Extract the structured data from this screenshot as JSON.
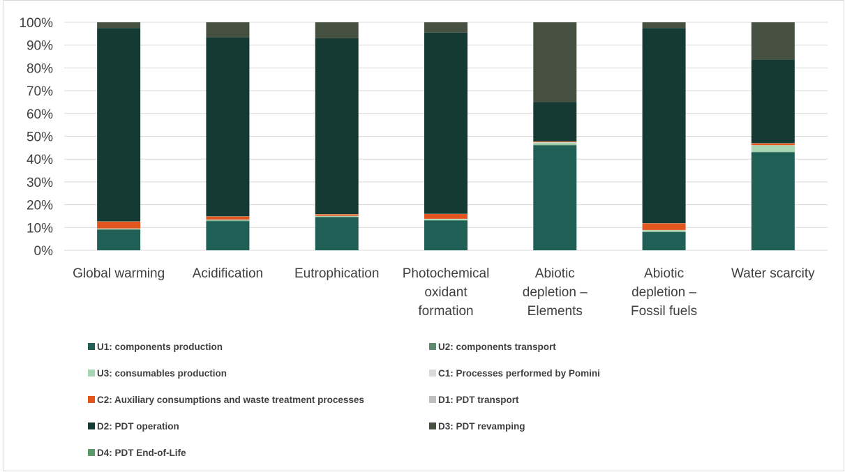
{
  "chart_data": {
    "type": "bar",
    "stacked": true,
    "percent": true,
    "categories": [
      [
        "Global warming"
      ],
      [
        "Acidification"
      ],
      [
        "Eutrophication"
      ],
      [
        "Photochemical",
        "oxidant",
        "formation"
      ],
      [
        "Abiotic",
        "depletion –",
        "Elements"
      ],
      [
        "Abiotic",
        "depletion –",
        "Fossil fuels"
      ],
      [
        "Water scarcity"
      ]
    ],
    "yticks": [
      "0%",
      "10%",
      "20%",
      "30%",
      "40%",
      "50%",
      "60%",
      "70%",
      "80%",
      "90%",
      "100%"
    ],
    "ylim": [
      0,
      100
    ],
    "grid": true,
    "legend_position": "bottom",
    "series": [
      {
        "name": "U1: components production",
        "color": "#1f5f55",
        "values": [
          9.0,
          12.8,
          14.5,
          13.0,
          46.0,
          8.0,
          43.0
        ]
      },
      {
        "name": "U2: components transport",
        "color": "#5f8a70",
        "values": [
          0.2,
          0.2,
          0.2,
          0.2,
          0.3,
          0.2,
          0.2
        ]
      },
      {
        "name": "U3: consumables production",
        "color": "#a8d5b2",
        "values": [
          0.3,
          0.4,
          0.3,
          0.5,
          0.9,
          0.6,
          2.8
        ]
      },
      {
        "name": "C1: Processes performed by Pomini",
        "color": "#d9d9d9",
        "values": [
          0.1,
          0.1,
          0.1,
          0.1,
          0.2,
          0.1,
          0.1
        ]
      },
      {
        "name": "C2: Auxiliary consumptions and waste treatment processes",
        "color": "#e2561e",
        "values": [
          3.0,
          1.3,
          0.7,
          2.1,
          0.3,
          2.9,
          0.8
        ]
      },
      {
        "name": "D1: PDT transport",
        "color": "#bfbfbf",
        "values": [
          0.1,
          0.1,
          0.1,
          0.1,
          0.1,
          0.1,
          0.1
        ]
      },
      {
        "name": "D2: PDT operation",
        "color": "#143a33",
        "values": [
          84.8,
          78.6,
          77.1,
          79.5,
          17.2,
          85.6,
          36.7
        ]
      },
      {
        "name": "D3: PDT revamping",
        "color": "#465040",
        "values": [
          2.5,
          6.5,
          7.0,
          4.5,
          35.0,
          2.5,
          16.3
        ]
      },
      {
        "name": "D4: PDT End-of-Life",
        "color": "#5a9a68",
        "values": [
          0.0,
          0.0,
          0.0,
          0.0,
          0.0,
          0.0,
          0.0
        ]
      }
    ]
  }
}
